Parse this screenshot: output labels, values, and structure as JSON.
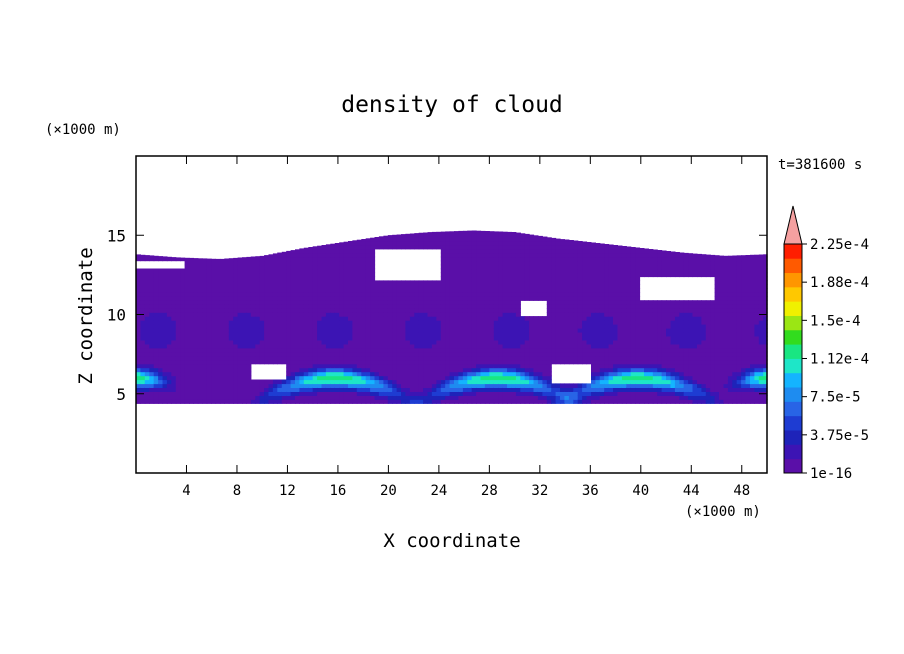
{
  "chart_data": {
    "type": "heatmap",
    "title": "density of cloud",
    "xlabel": "X coordinate",
    "ylabel": "Z coordinate",
    "x_unit": "(×1000 m)",
    "y_unit": "(×1000 m)",
    "time_label": "t=381600 s",
    "xlim": [
      0,
      50
    ],
    "ylim": [
      0,
      20
    ],
    "x_ticks": [
      4,
      8,
      12,
      16,
      20,
      24,
      28,
      32,
      36,
      40,
      44,
      48
    ],
    "y_ticks": [
      5,
      10,
      15
    ],
    "colorbar": {
      "labels": [
        "1e-16",
        "3.75e-5",
        "7.5e-5",
        "1.12e-4",
        "1.5e-4",
        "1.88e-4",
        "2.25e-4"
      ],
      "colors": [
        "#5a0fa8",
        "#3c14b4",
        "#1e23b9",
        "#1e3cd2",
        "#2864e6",
        "#1e8cf0",
        "#14b4ff",
        "#1ee6c8",
        "#19e682",
        "#32dc1e",
        "#9be614",
        "#f0f000",
        "#ffc800",
        "#ff9600",
        "#ff5a00",
        "#ff1e00",
        "#f5a0a0"
      ],
      "over_extend": true
    },
    "field": {
      "cloud_top_km": [
        13.8,
        13.6,
        13.5,
        13.7,
        14.2,
        14.6,
        15.0,
        15.2,
        15.3,
        15.2,
        14.8,
        14.5,
        14.2,
        13.9,
        13.7,
        13.8
      ],
      "cloud_base_km": 4.4,
      "band_centers_km": [
        0,
        15.8,
        28.6,
        39.8,
        50
      ],
      "band_peak_z_km": 6.0,
      "band_max_value": 0.00013,
      "gaps": [
        {
          "x_range_km": [
            0,
            4
          ],
          "z_range_km": [
            12.9,
            13.4
          ]
        },
        {
          "x_range_km": [
            19,
            24
          ],
          "z_range_km": [
            12.2,
            14.2
          ]
        },
        {
          "x_range_km": [
            40,
            46
          ],
          "z_range_km": [
            10.8,
            12.5
          ]
        },
        {
          "x_range_km": [
            30.5,
            32.5
          ],
          "z_range_km": [
            10.0,
            11.0
          ]
        },
        {
          "x_range_km": [
            9,
            12
          ],
          "z_range_km": [
            5.8,
            6.8
          ]
        },
        {
          "x_range_km": [
            33,
            36
          ],
          "z_range_km": [
            5.6,
            6.8
          ]
        }
      ]
    }
  }
}
